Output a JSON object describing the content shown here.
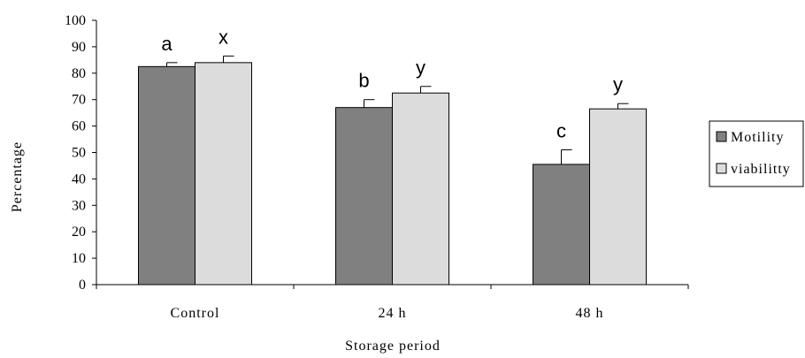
{
  "chart_data": {
    "type": "bar",
    "categories": [
      "Control",
      "24 h",
      "48 h"
    ],
    "series": [
      {
        "name": "Motility",
        "color": "#808080",
        "values": [
          82.5,
          67,
          45.5
        ],
        "errors": [
          1.5,
          3,
          5.5
        ],
        "labels": [
          "a",
          "b",
          "c"
        ]
      },
      {
        "name": "viabilitty",
        "color": "#dcdcdc",
        "values": [
          84,
          72.5,
          66.5
        ],
        "errors": [
          2.5,
          2.5,
          2
        ],
        "labels": [
          "x",
          "y",
          "y"
        ]
      }
    ],
    "xlabel": "Storage period",
    "ylabel": "Percentage",
    "ylim": [
      0,
      100
    ],
    "yticks": [
      0,
      10,
      20,
      30,
      40,
      50,
      60,
      70,
      80,
      90,
      100
    ],
    "grid": false,
    "legend_position": "right"
  }
}
